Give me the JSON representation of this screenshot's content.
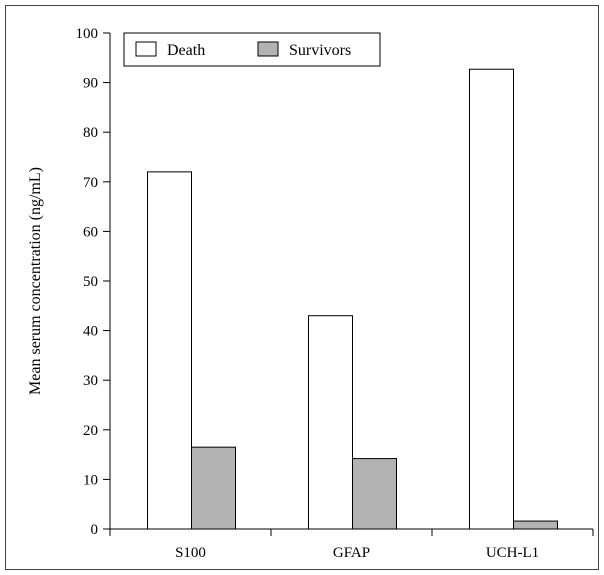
{
  "chart_data": {
    "type": "bar",
    "categories": [
      "S100",
      "GFAP",
      "UCH-L1"
    ],
    "series": [
      {
        "name": "Death",
        "values": [
          72,
          43,
          92.7
        ],
        "color": "#ffffff"
      },
      {
        "name": "Survivors",
        "values": [
          16.5,
          14.2,
          1.6
        ],
        "color": "#b3b3b3"
      }
    ],
    "ylabel": "Mean serum concentration (ng/mL)",
    "xlabel": "",
    "ylim": [
      0,
      100
    ],
    "yticks": [
      0,
      10,
      20,
      30,
      40,
      50,
      60,
      70,
      80,
      90,
      100
    ],
    "legend": "top-left",
    "grid": false
  }
}
